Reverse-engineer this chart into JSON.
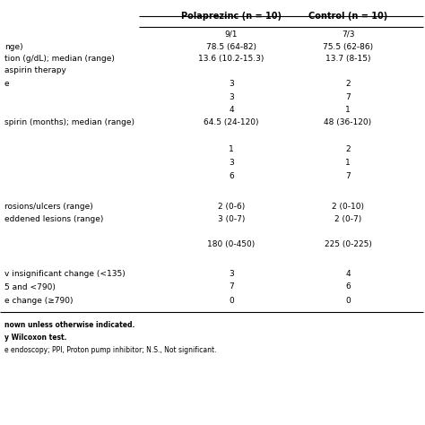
{
  "col_headers": [
    "Polaprezinc (n = 10)",
    "Control (n = 10)"
  ],
  "rows": [
    {
      "label": "",
      "col1": "9/1",
      "col2": "7/3",
      "extra_above": 0
    },
    {
      "label": "nge)",
      "col1": "78.5 (64-82)",
      "col2": "75.5 (62-86)",
      "extra_above": 0
    },
    {
      "label": "tion (g/dL); median (range)",
      "col1": "13.6 (10.2-15.3)",
      "col2": "13.7 (8-15)",
      "extra_above": 0
    },
    {
      "label": "aspirin therapy",
      "col1": "",
      "col2": "",
      "extra_above": 0
    },
    {
      "label": "e",
      "col1": "3",
      "col2": "2",
      "extra_above": 0
    },
    {
      "label": "",
      "col1": "3",
      "col2": "7",
      "extra_above": 0
    },
    {
      "label": "",
      "col1": "4",
      "col2": "1",
      "extra_above": 0
    },
    {
      "label": "spirin (months); median (range)",
      "col1": "64.5 (24-120)",
      "col2": "48 (36-120)",
      "extra_above": 0
    },
    {
      "label": "",
      "col1": "",
      "col2": "",
      "extra_above": 0
    },
    {
      "label": "",
      "col1": "1",
      "col2": "2",
      "extra_above": 0
    },
    {
      "label": "",
      "col1": "3",
      "col2": "1",
      "extra_above": 0
    },
    {
      "label": "",
      "col1": "6",
      "col2": "7",
      "extra_above": 0
    },
    {
      "label": "",
      "col1": "",
      "col2": "",
      "extra_above": 0
    },
    {
      "label": "rosions/ulcers (range)",
      "col1": "2 (0-6)",
      "col2": "2 (0-10)",
      "extra_above": 0
    },
    {
      "label": "eddened lesions (range)",
      "col1": "3 (0-7)",
      "col2": "2 (0-7)",
      "extra_above": 0
    },
    {
      "label": "",
      "col1": "",
      "col2": "",
      "extra_above": 0
    },
    {
      "label": "",
      "col1": "180 (0-450)",
      "col2": "225 (0-225)",
      "extra_above": 0
    },
    {
      "label": "",
      "col1": "",
      "col2": "",
      "extra_above": 0
    },
    {
      "label": "v insignificant change (<135)",
      "col1": "3",
      "col2": "4",
      "extra_above": 0
    },
    {
      "label": "5 and <790)",
      "col1": "7",
      "col2": "6",
      "extra_above": 0
    },
    {
      "label": "e change (≥790)",
      "col1": "0",
      "col2": "0",
      "extra_above": 0
    }
  ],
  "footnotes": [
    {
      "text": "nown unless otherwise indicated.",
      "bold": true
    },
    {
      "text": "y Wilcoxon test.",
      "bold": true
    },
    {
      "text": "e endoscopy; PPI, Proton pump inhibitor; N.S., Not significant.",
      "bold": false
    }
  ],
  "bg_color": "#ffffff",
  "line_color": "#000000",
  "text_color": "#000000",
  "header_fontsize": 7.0,
  "body_fontsize": 6.5,
  "footnote_fontsize": 5.5
}
